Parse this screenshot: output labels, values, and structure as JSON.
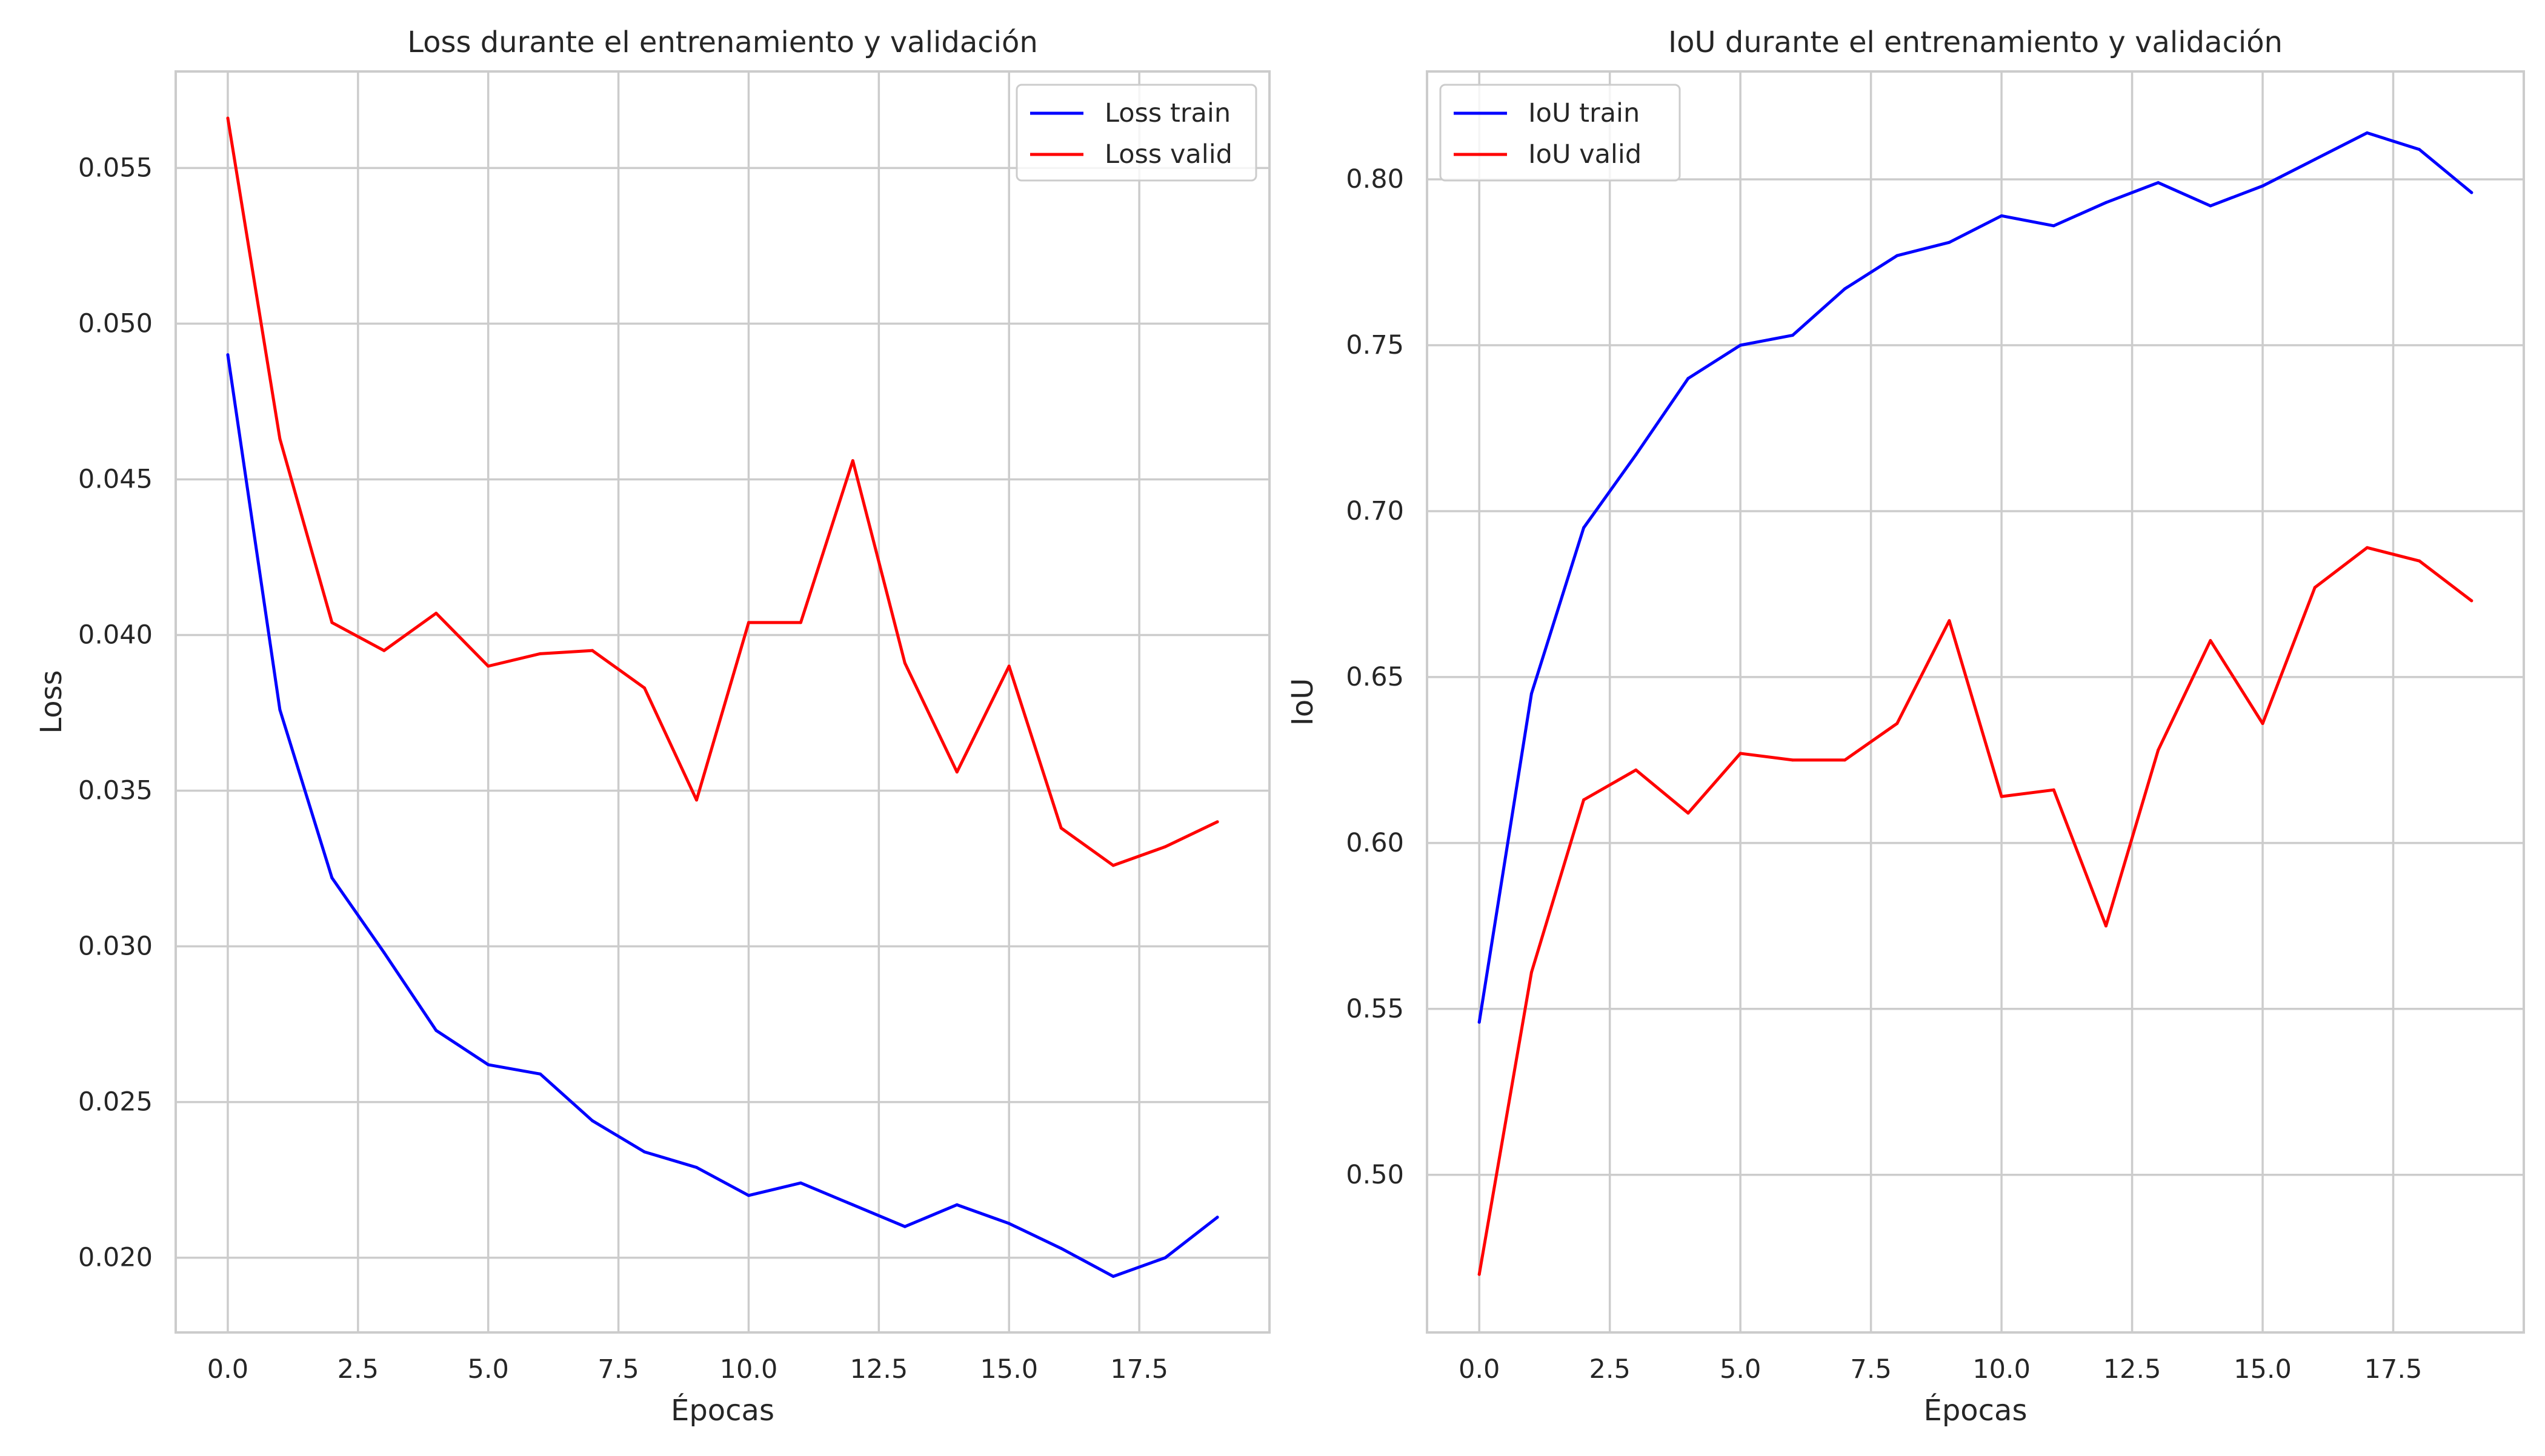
{
  "chart_data": [
    {
      "type": "line",
      "title": "Loss durante el entrenamiento y validación",
      "xlabel": "Épocas",
      "ylabel": "Loss",
      "xlim": [
        -1.0,
        20.0
      ],
      "ylim": [
        0.0176,
        0.0581
      ],
      "xticks": [
        0.0,
        2.5,
        5.0,
        7.5,
        10.0,
        12.5,
        15.0,
        17.5
      ],
      "xtick_labels": [
        "0.0",
        "2.5",
        "5.0",
        "7.5",
        "10.0",
        "12.5",
        "15.0",
        "17.5"
      ],
      "yticks": [
        0.02,
        0.025,
        0.03,
        0.035,
        0.04,
        0.045,
        0.05,
        0.055
      ],
      "ytick_labels": [
        "0.020",
        "0.025",
        "0.030",
        "0.035",
        "0.040",
        "0.045",
        "0.050",
        "0.055"
      ],
      "grid": true,
      "legend_position": "top-right",
      "x": [
        0,
        1,
        2,
        3,
        4,
        5,
        6,
        7,
        8,
        9,
        10,
        11,
        12,
        13,
        14,
        15,
        16,
        17,
        18,
        19
      ],
      "series": [
        {
          "name": "Loss train",
          "color": "#0000ff",
          "values": [
            0.049,
            0.0376,
            0.0322,
            0.0298,
            0.0273,
            0.0262,
            0.0259,
            0.0244,
            0.0234,
            0.0229,
            0.022,
            0.0224,
            0.0217,
            0.021,
            0.0217,
            0.0211,
            0.0203,
            0.0194,
            0.02,
            0.0213
          ]
        },
        {
          "name": "Loss valid",
          "color": "#ff0000",
          "values": [
            0.0566,
            0.0463,
            0.0404,
            0.0395,
            0.0407,
            0.039,
            0.0394,
            0.0395,
            0.0383,
            0.0347,
            0.0404,
            0.0404,
            0.0456,
            0.0391,
            0.0356,
            0.039,
            0.0338,
            0.0326,
            0.0332,
            0.034
          ]
        }
      ]
    },
    {
      "type": "line",
      "title": "IoU durante el entrenamiento y validación",
      "xlabel": "Épocas",
      "ylabel": "IoU",
      "xlim": [
        -1.0,
        20.0
      ],
      "ylim": [
        0.4525,
        0.8325
      ],
      "xticks": [
        0.0,
        2.5,
        5.0,
        7.5,
        10.0,
        12.5,
        15.0,
        17.5
      ],
      "xtick_labels": [
        "0.0",
        "2.5",
        "5.0",
        "7.5",
        "10.0",
        "12.5",
        "15.0",
        "17.5"
      ],
      "yticks": [
        0.5,
        0.55,
        0.6,
        0.65,
        0.7,
        0.75,
        0.8
      ],
      "ytick_labels": [
        "0.50",
        "0.55",
        "0.60",
        "0.65",
        "0.70",
        "0.75",
        "0.80"
      ],
      "grid": true,
      "legend_position": "top-left",
      "x": [
        0,
        1,
        2,
        3,
        4,
        5,
        6,
        7,
        8,
        9,
        10,
        11,
        12,
        13,
        14,
        15,
        16,
        17,
        18,
        19
      ],
      "series": [
        {
          "name": "IoU train",
          "color": "#0000ff",
          "values": [
            0.546,
            0.645,
            0.695,
            0.717,
            0.74,
            0.75,
            0.753,
            0.767,
            0.777,
            0.781,
            0.789,
            0.786,
            0.793,
            0.799,
            0.792,
            0.798,
            0.806,
            0.814,
            0.809,
            0.796
          ]
        },
        {
          "name": "IoU valid",
          "color": "#ff0000",
          "values": [
            0.47,
            0.561,
            0.613,
            0.622,
            0.609,
            0.627,
            0.625,
            0.625,
            0.636,
            0.667,
            0.614,
            0.616,
            0.575,
            0.628,
            0.661,
            0.636,
            0.677,
            0.689,
            0.685,
            0.673
          ]
        }
      ]
    }
  ]
}
